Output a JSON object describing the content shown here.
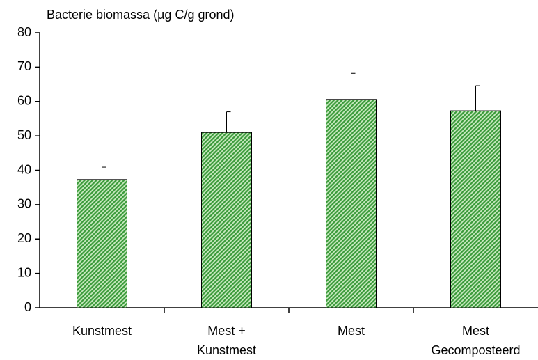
{
  "chart_data": {
    "type": "bar",
    "title": "Bacterie biomassa (µg C/g grond)",
    "categories": [
      "Kunstmest",
      "Mest +\nKunstmest",
      "Mest",
      "Mest\nGecomposteerd"
    ],
    "values": [
      37.3,
      51,
      60.6,
      57.3
    ],
    "errors": [
      3.6,
      6,
      7.6,
      7.3
    ],
    "color": "#3a9a3a",
    "ylim": [
      0,
      80
    ],
    "yticks": [
      0,
      10,
      20,
      30,
      40,
      50,
      60,
      70,
      80
    ],
    "grid": false
  }
}
